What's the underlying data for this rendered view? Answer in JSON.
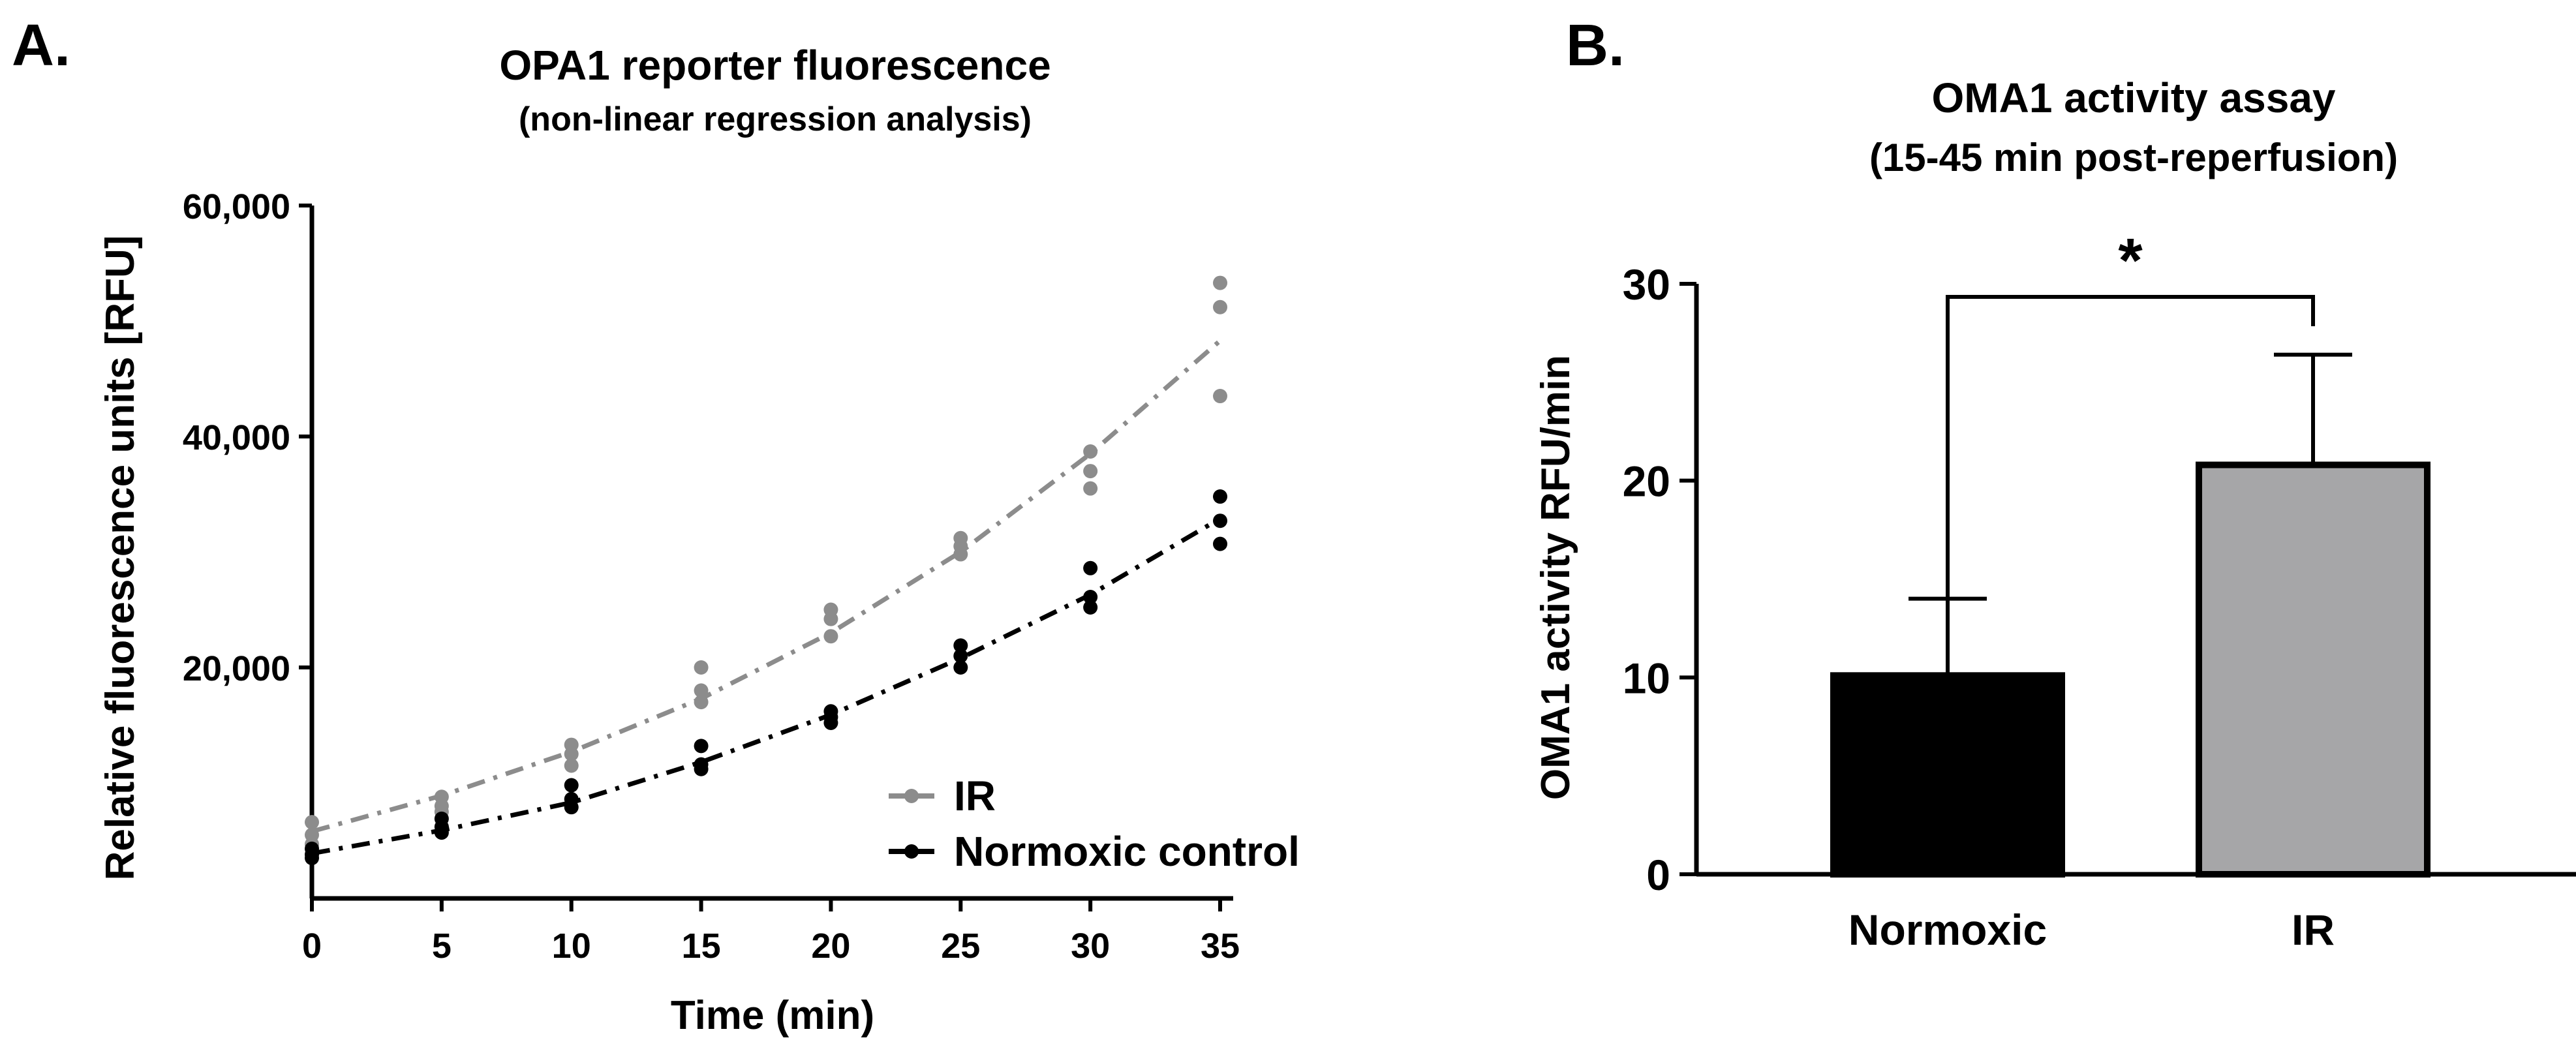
{
  "chart_data": [
    {
      "panel_label": "A.",
      "type": "scatter",
      "title": "OPA1 reporter fluorescence",
      "subtitle": "(non-linear regression analysis)",
      "xlabel": "Time (min)",
      "ylabel": "Relative fluorescence units [RFU]",
      "xlim": [
        0,
        35
      ],
      "ylim": [
        0,
        60000
      ],
      "x_ticks": [
        0,
        5,
        10,
        15,
        20,
        25,
        30,
        35
      ],
      "x_tick_labels": [
        "0",
        "5",
        "10",
        "15",
        "20",
        "25",
        "30",
        "35"
      ],
      "y_ticks": [
        20000,
        40000,
        60000
      ],
      "y_tick_labels": [
        "20,000",
        "40,000",
        "60,000"
      ],
      "legend_position": "bottom-right",
      "series": [
        {
          "name": "IR",
          "color": "#8c8c8c",
          "points": [
            [
              0,
              5500
            ],
            [
              0,
              6600
            ],
            [
              0,
              4700
            ],
            [
              5,
              8000
            ],
            [
              5,
              8800
            ],
            [
              5,
              7500
            ],
            [
              10,
              11500
            ],
            [
              10,
              12500
            ],
            [
              10,
              13300
            ],
            [
              15,
              17000
            ],
            [
              15,
              18000
            ],
            [
              15,
              20000
            ],
            [
              20,
              22700
            ],
            [
              20,
              24200
            ],
            [
              20,
              25000
            ],
            [
              25,
              29800
            ],
            [
              25,
              30500
            ],
            [
              25,
              31200
            ],
            [
              30,
              35500
            ],
            [
              30,
              37000
            ],
            [
              30,
              38700
            ],
            [
              35,
              43500
            ],
            [
              35,
              51200
            ],
            [
              35,
              53300
            ]
          ],
          "fit": [
            [
              0,
              5800
            ],
            [
              5,
              8900
            ],
            [
              10,
              12700
            ],
            [
              15,
              17300
            ],
            [
              20,
              23000
            ],
            [
              25,
              30000
            ],
            [
              30,
              38500
            ],
            [
              35,
              48300
            ]
          ]
        },
        {
          "name": "Normoxic control",
          "color": "#000000",
          "points": [
            [
              0,
              3800
            ],
            [
              0,
              4300
            ],
            [
              0,
              3500
            ],
            [
              5,
              5700
            ],
            [
              5,
              6200
            ],
            [
              5,
              6900
            ],
            [
              10,
              7900
            ],
            [
              10,
              8600
            ],
            [
              10,
              9800
            ],
            [
              15,
              11200
            ],
            [
              15,
              11600
            ],
            [
              15,
              13200
            ],
            [
              20,
              15200
            ],
            [
              20,
              15700
            ],
            [
              20,
              16200
            ],
            [
              25,
              20000
            ],
            [
              25,
              21000
            ],
            [
              25,
              21900
            ],
            [
              30,
              25200
            ],
            [
              30,
              26100
            ],
            [
              30,
              28600
            ],
            [
              35,
              30700
            ],
            [
              35,
              32700
            ],
            [
              35,
              34800
            ]
          ],
          "fit": [
            [
              0,
              3900
            ],
            [
              5,
              5900
            ],
            [
              10,
              8300
            ],
            [
              15,
              11800
            ],
            [
              20,
              15900
            ],
            [
              25,
              20800
            ],
            [
              30,
              26300
            ],
            [
              35,
              32900
            ]
          ]
        }
      ]
    },
    {
      "panel_label": "B.",
      "type": "bar",
      "title": "OMA1 activity assay",
      "subtitle": "(15-45 min post-reperfusion)",
      "xlabel": "",
      "ylabel": "OMA1 activity RFU/min",
      "ylim": [
        0,
        30
      ],
      "y_ticks": [
        0,
        10,
        20,
        30
      ],
      "y_tick_labels": [
        "0",
        "10",
        "20",
        "30"
      ],
      "categories": [
        "Normoxic",
        "IR"
      ],
      "values": [
        10.1,
        20.8
      ],
      "errors": [
        3.9,
        5.6
      ],
      "colors": [
        "#000000",
        "#a6a6a8"
      ],
      "significance": {
        "between": [
          "Normoxic",
          "IR"
        ],
        "label": "*"
      }
    }
  ]
}
